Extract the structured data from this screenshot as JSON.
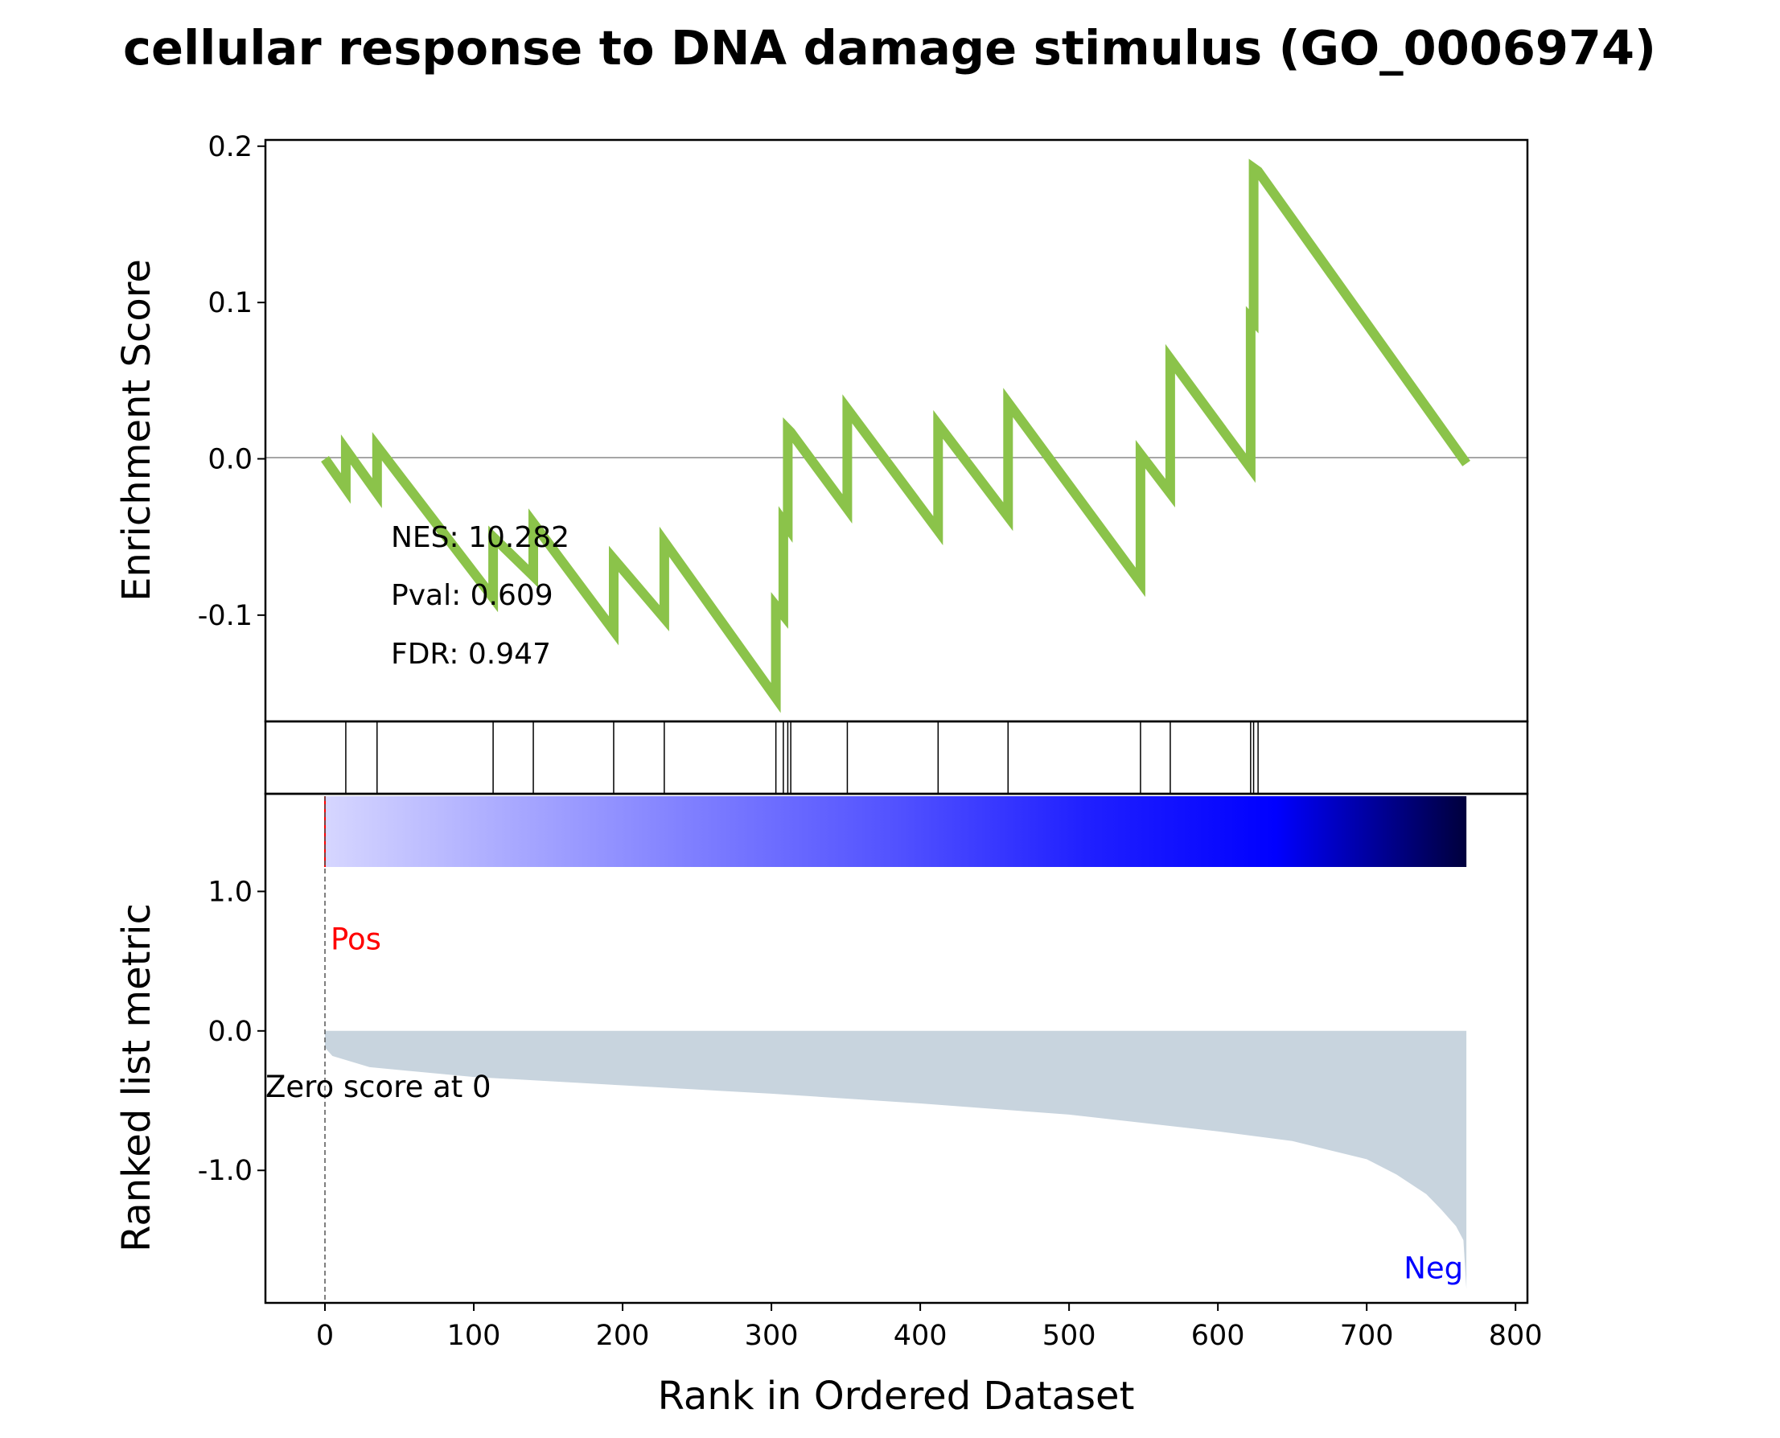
{
  "chart_data": {
    "type": "line",
    "title": "cellular response to DNA damage stimulus (GO_0006974)",
    "xlabel": "Rank in Ordered Dataset",
    "xlim": [
      -40,
      808
    ],
    "x_ticks": [
      0,
      100,
      200,
      300,
      400,
      500,
      600,
      700,
      800
    ],
    "x_tick_labels": [
      "0",
      "100",
      "200",
      "300",
      "400",
      "500",
      "600",
      "700",
      "800"
    ],
    "enrichment": {
      "ylabel": "Enrichment Score",
      "ylim": [
        -0.168,
        0.204
      ],
      "y_ticks": [
        0.2,
        0.1,
        0.0,
        -0.1
      ],
      "y_tick_labels": [
        "0.2",
        "0.1",
        "0.0",
        "-0.1"
      ],
      "line_color": "#8bc34a",
      "series": [
        {
          "x": [
            0,
            14,
            14,
            35,
            35,
            113,
            113,
            140,
            140,
            194,
            194,
            228,
            228,
            303,
            303,
            308,
            308,
            311,
            311,
            313,
            313,
            351,
            351,
            412,
            412,
            459,
            459,
            548,
            548,
            568,
            568,
            622,
            622,
            624,
            624,
            627,
            627,
            767
          ],
          "y": [
            0.0,
            -0.019,
            0.006,
            -0.022,
            0.008,
            -0.089,
            -0.05,
            -0.075,
            -0.041,
            -0.11,
            -0.064,
            -0.102,
            -0.053,
            -0.153,
            -0.094,
            -0.1,
            -0.04,
            -0.044,
            0.019,
            0.017,
            0.017,
            -0.032,
            0.032,
            -0.046,
            0.022,
            -0.037,
            0.036,
            -0.079,
            0.003,
            -0.022,
            0.064,
            -0.006,
            0.09,
            0.088,
            0.186,
            0.184,
            0.184,
            -0.003
          ]
        }
      ],
      "stats": {
        "nes": "NES: 10.282",
        "pval": "Pval: 0.609",
        "fdr": "FDR: 0.947"
      }
    },
    "hits": {
      "positions": [
        14,
        35,
        113,
        140,
        194,
        228,
        303,
        308,
        311,
        313,
        351,
        412,
        459,
        548,
        568,
        622,
        624,
        627
      ]
    },
    "ranked_metric": {
      "ylabel": "Ranked list metric",
      "ylim": [
        -1.95,
        1.7
      ],
      "y_ticks": [
        1.0,
        0.0,
        -1.0
      ],
      "y_tick_labels": [
        "1.0",
        "0.0",
        "-1.0"
      ],
      "fill_color": "#c8d4de",
      "n_genes": 768,
      "curve": {
        "x": [
          0,
          5,
          30,
          100,
          200,
          300,
          400,
          500,
          600,
          650,
          700,
          720,
          740,
          750,
          760,
          765,
          767
        ],
        "y": [
          -0.12,
          -0.18,
          -0.26,
          -0.33,
          -0.39,
          -0.45,
          -0.52,
          -0.6,
          -0.72,
          -0.79,
          -0.92,
          -1.03,
          -1.17,
          -1.28,
          -1.4,
          -1.5,
          -1.85
        ]
      },
      "pos_label": "Pos",
      "neg_label": "Neg",
      "pos_color": "#ff0000",
      "neg_color": "#0000ff",
      "zero_label": "Zero score at 0",
      "zero_score_rank": 0,
      "colorbar_colors": [
        "#d6d6ff",
        "#a8a8ff",
        "#7c7cff",
        "#5252ff",
        "#2020ff",
        "#0000ff",
        "#00003c"
      ]
    }
  }
}
